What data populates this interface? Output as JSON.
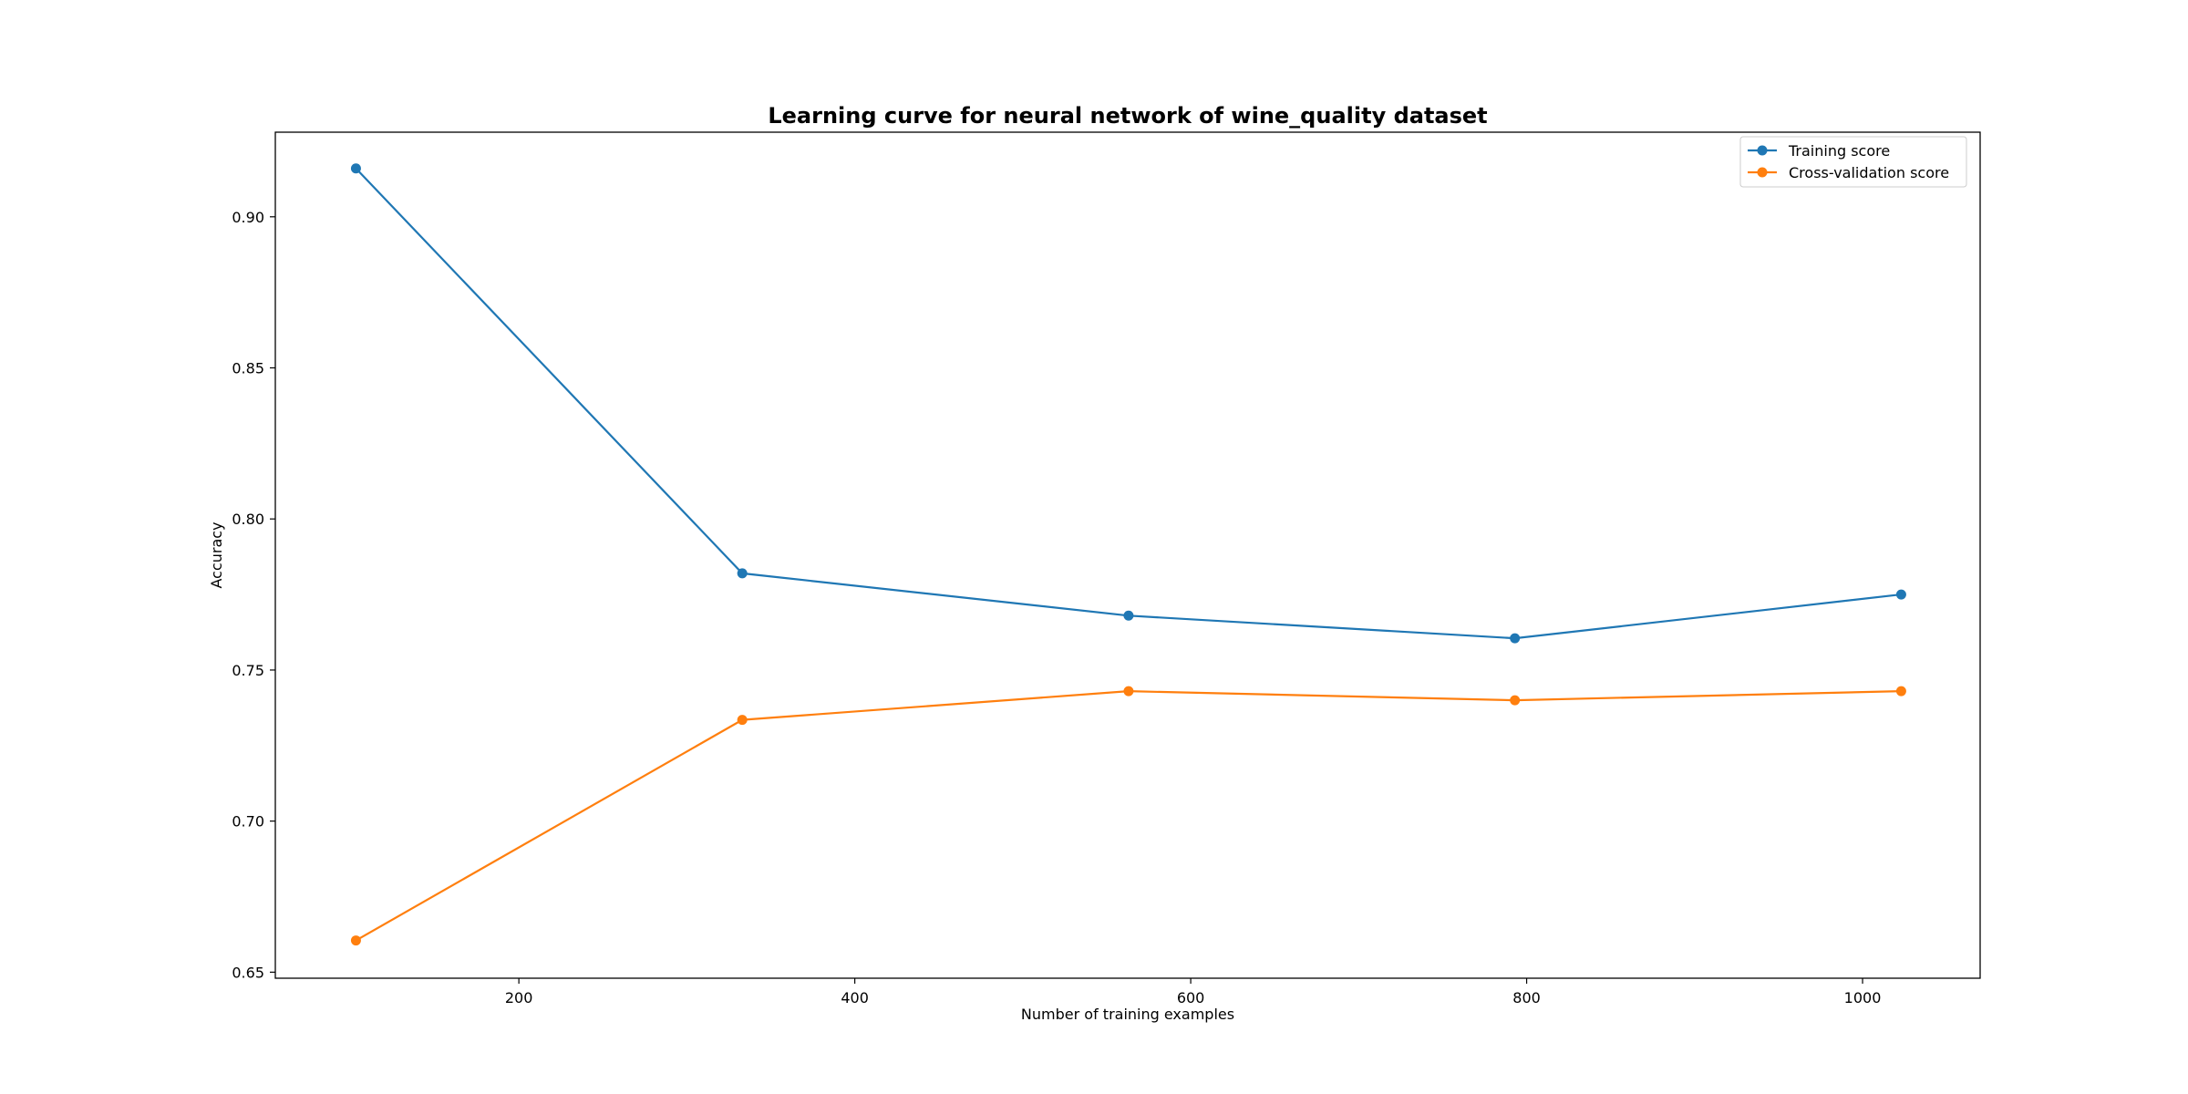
{
  "chart_data": {
    "type": "line",
    "title": "Learning curve for neural network of wine_quality dataset",
    "xlabel": "Number of training examples",
    "ylabel": "Accuracy",
    "x": [
      103,
      333,
      563,
      793,
      1023
    ],
    "xlim": [
      55,
      1070
    ],
    "ylim": [
      0.648,
      0.928
    ],
    "xticks": [
      200,
      400,
      600,
      800,
      1000
    ],
    "yticks": [
      0.65,
      0.7,
      0.75,
      0.8,
      0.85,
      0.9
    ],
    "ytick_labels": [
      "0.65",
      "0.70",
      "0.75",
      "0.80",
      "0.85",
      "0.90"
    ],
    "xtick_labels": [
      "200",
      "400",
      "600",
      "800",
      "1000"
    ],
    "grid": false,
    "legend_position": "top-right",
    "series": [
      {
        "name": "Training score",
        "color": "#1f77b4",
        "values": [
          0.916,
          0.782,
          0.768,
          0.7605,
          0.775
        ]
      },
      {
        "name": "Cross-validation score",
        "color": "#ff7f0e",
        "values": [
          0.6605,
          0.7335,
          0.743,
          0.74,
          0.743
        ]
      }
    ]
  }
}
